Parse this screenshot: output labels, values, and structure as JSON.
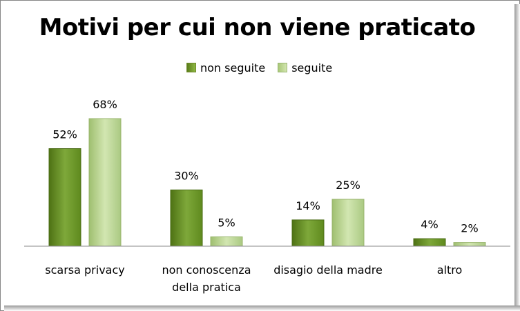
{
  "chart_data": {
    "type": "bar",
    "title": "Motivi per cui non viene praticato",
    "categories": [
      [
        "scarsa privacy"
      ],
      [
        "non conoscenza",
        "della pratica"
      ],
      [
        "disagio della madre"
      ],
      [
        "altro"
      ]
    ],
    "series": [
      {
        "name": "non seguite",
        "values": [
          52,
          30,
          14,
          4
        ],
        "labels": [
          "52%",
          "30%",
          "14%",
          "4%"
        ],
        "color": "#6f9a2a"
      },
      {
        "name": "seguite",
        "values": [
          68,
          5,
          25,
          2
        ],
        "labels": [
          "68%",
          "5%",
          "25%",
          "2%"
        ],
        "color": "#bcd78f"
      }
    ],
    "ylim": [
      0,
      68
    ],
    "legend": "top",
    "grid": false
  }
}
